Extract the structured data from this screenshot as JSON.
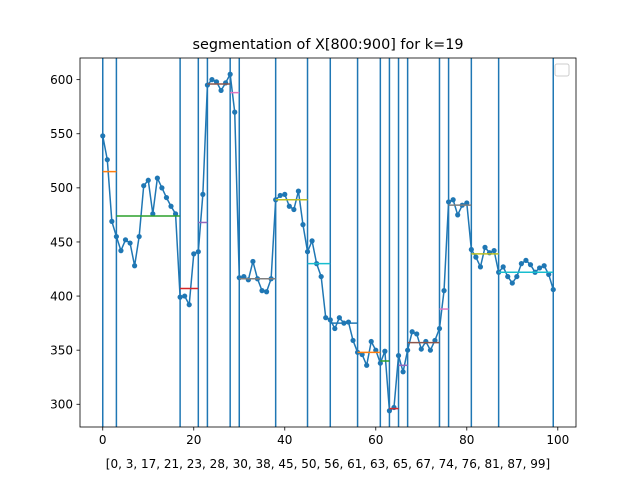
{
  "chart_data": {
    "type": "line",
    "title": "segmentation of X[800:900] for k=19",
    "xlabel": "[0, 3, 17, 21, 23, 28, 30, 38, 45, 50, 56, 61, 63, 65, 67, 74, 76, 81, 87, 99]",
    "ylabel": "",
    "xlim": [
      -5,
      104
    ],
    "ylim": [
      279,
      620
    ],
    "xticks": [
      0,
      20,
      40,
      60,
      80,
      100
    ],
    "yticks": [
      300,
      350,
      400,
      450,
      500,
      550,
      600
    ],
    "grid": false,
    "legend": {
      "placement": "top-right",
      "entries": []
    },
    "boundaries": [
      0,
      3,
      17,
      21,
      23,
      28,
      30,
      38,
      45,
      50,
      56,
      61,
      63,
      65,
      67,
      74,
      76,
      81,
      87,
      99
    ],
    "series": [
      {
        "color": "#1f77b4",
        "x": [
          0,
          1,
          2,
          3,
          4,
          5,
          6,
          7,
          8,
          9,
          10,
          11,
          12,
          13,
          14,
          15,
          16,
          17,
          18,
          19,
          20,
          21,
          22,
          23,
          24,
          25,
          26,
          27,
          28,
          29,
          30,
          31,
          32,
          33,
          34,
          35,
          36,
          37,
          38,
          39,
          40,
          41,
          42,
          43,
          44,
          45,
          46,
          47,
          48,
          49,
          50,
          51,
          52,
          53,
          54,
          55,
          56,
          57,
          58,
          59,
          60,
          61,
          62,
          63,
          64,
          65,
          66,
          67,
          68,
          69,
          70,
          71,
          72,
          73,
          74,
          75,
          76,
          77,
          78,
          79,
          80,
          81,
          82,
          83,
          84,
          85,
          86,
          87,
          88,
          89,
          90,
          91,
          92,
          93,
          94,
          95,
          96,
          97,
          98,
          99
        ],
        "values": [
          548,
          526,
          469,
          455,
          442,
          452,
          449,
          428,
          455,
          502,
          507,
          476,
          509,
          500,
          491,
          483,
          476,
          399,
          400,
          392,
          439,
          441,
          494,
          595,
          600,
          598,
          590,
          597,
          605,
          570,
          417,
          418,
          415,
          432,
          416,
          405,
          404,
          416,
          489,
          493,
          494,
          483,
          480,
          497,
          466,
          441,
          451,
          430,
          418,
          380,
          378,
          370,
          380,
          375,
          376,
          359,
          348,
          346,
          336,
          358,
          350,
          338,
          349,
          294,
          297,
          345,
          330,
          350,
          367,
          365,
          351,
          358,
          350,
          359,
          370,
          405,
          487,
          489,
          475,
          484,
          486,
          443,
          436,
          427,
          445,
          440,
          442,
          422,
          427,
          418,
          412,
          418,
          430,
          433,
          429,
          422,
          426,
          428,
          420,
          406
        ]
      }
    ],
    "segment_means": [
      {
        "x": [
          0,
          3
        ],
        "value": 515,
        "color": "#ff7f0e"
      },
      {
        "x": [
          3,
          17
        ],
        "value": 474,
        "color": "#2ca02c"
      },
      {
        "x": [
          17,
          21
        ],
        "value": 407,
        "color": "#d62728"
      },
      {
        "x": [
          21,
          23
        ],
        "value": 468,
        "color": "#9467bd"
      },
      {
        "x": [
          23,
          28
        ],
        "value": 596,
        "color": "#8c564b"
      },
      {
        "x": [
          28,
          30
        ],
        "value": 588,
        "color": "#e377c2"
      },
      {
        "x": [
          30,
          38
        ],
        "value": 416,
        "color": "#7f7f7f"
      },
      {
        "x": [
          38,
          45
        ],
        "value": 489,
        "color": "#bcbd22"
      },
      {
        "x": [
          45,
          50
        ],
        "value": 430,
        "color": "#17becf"
      },
      {
        "x": [
          50,
          56
        ],
        "value": 375,
        "color": "#1f77b4"
      },
      {
        "x": [
          56,
          61
        ],
        "value": 348,
        "color": "#ff7f0e"
      },
      {
        "x": [
          61,
          63
        ],
        "value": 340,
        "color": "#2ca02c"
      },
      {
        "x": [
          63,
          65
        ],
        "value": 296,
        "color": "#d62728"
      },
      {
        "x": [
          65,
          67
        ],
        "value": 336,
        "color": "#9467bd"
      },
      {
        "x": [
          67,
          74
        ],
        "value": 357,
        "color": "#8c564b"
      },
      {
        "x": [
          74,
          76
        ],
        "value": 388,
        "color": "#e377c2"
      },
      {
        "x": [
          76,
          81
        ],
        "value": 484,
        "color": "#7f7f7f"
      },
      {
        "x": [
          81,
          87
        ],
        "value": 439,
        "color": "#bcbd22"
      },
      {
        "x": [
          87,
          99
        ],
        "value": 422,
        "color": "#17becf"
      }
    ],
    "colors": {
      "line": "#1f77b4",
      "boundary": "#1f77b4",
      "axes": "#000000",
      "legend_border": "#cccccc"
    }
  }
}
